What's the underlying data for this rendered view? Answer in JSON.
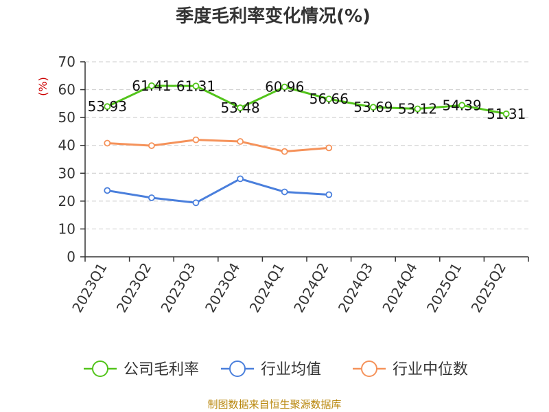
{
  "chart_data": {
    "type": "line",
    "title": "季度毛利率变化情况(%)",
    "ylabel": "(%)",
    "categories": [
      "2023Q1",
      "2023Q2",
      "2023Q3",
      "2023Q4",
      "2024Q1",
      "2024Q2",
      "2024Q3",
      "2024Q4",
      "2025Q1",
      "2025Q2"
    ],
    "ylim": [
      0,
      70
    ],
    "yticks": [
      0,
      10,
      20,
      30,
      40,
      50,
      60,
      70
    ],
    "grid": true,
    "legend_position": "bottom",
    "series": [
      {
        "name": "公司毛利率",
        "color": "#52c41a",
        "values": [
          53.93,
          61.41,
          61.31,
          53.48,
          60.96,
          56.66,
          53.69,
          53.12,
          54.39,
          51.31
        ],
        "labels": [
          "53.93",
          "61.41",
          "61.31",
          "53.48",
          "60.96",
          "56.66",
          "53.69",
          "53.12",
          "54.39",
          "51.31"
        ]
      },
      {
        "name": "行业均值",
        "color": "#4a7fdc",
        "values": [
          23.8,
          21.2,
          19.4,
          28.0,
          23.3,
          22.3,
          null,
          null,
          null,
          null
        ]
      },
      {
        "name": "行业中位数",
        "color": "#f5925a",
        "values": [
          40.8,
          39.9,
          42.0,
          41.4,
          37.8,
          39.1,
          null,
          null,
          null,
          null
        ]
      }
    ]
  },
  "footer": {
    "source": "制图数据来自恒生聚源数据库"
  }
}
